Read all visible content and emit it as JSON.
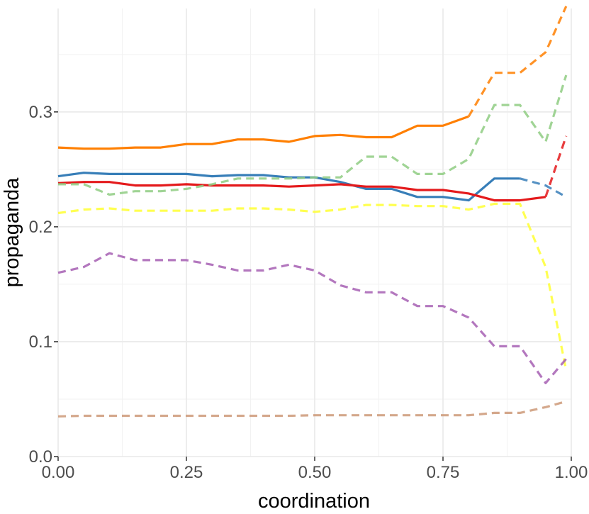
{
  "chart_data": {
    "type": "line",
    "title": "",
    "xlabel": "coordination",
    "ylabel": "propaganda",
    "xlim": [
      0,
      1
    ],
    "ylim": [
      0,
      0.39
    ],
    "grid": true,
    "legend": "none",
    "x_ticks": [
      0,
      0.25,
      0.5,
      0.75,
      1.0
    ],
    "x_tick_labels": [
      "0.00",
      "0.25",
      "0.50",
      "0.75",
      "1.00"
    ],
    "y_ticks": [
      0,
      0.1,
      0.2,
      0.3
    ],
    "y_tick_labels": [
      "0.0",
      "0.1",
      "0.2",
      "0.3"
    ],
    "x": [
      0,
      0.05,
      0.1,
      0.15,
      0.2,
      0.25,
      0.3,
      0.35,
      0.4,
      0.45,
      0.5,
      0.55,
      0.6,
      0.65,
      0.7,
      0.75,
      0.8,
      0.85,
      0.9,
      0.95,
      0.99
    ],
    "series": [
      {
        "color": "#ff7f00",
        "dash_start_index": 16,
        "values": [
          0.269,
          0.268,
          0.268,
          0.269,
          0.269,
          0.272,
          0.272,
          0.276,
          0.276,
          0.274,
          0.279,
          0.28,
          0.278,
          0.278,
          0.288,
          0.288,
          0.296,
          0.334,
          0.334,
          0.352,
          0.392
        ]
      },
      {
        "color": "#377eb8",
        "dash_start_index": 18,
        "values": [
          0.244,
          0.247,
          0.246,
          0.246,
          0.246,
          0.246,
          0.244,
          0.245,
          0.245,
          0.243,
          0.243,
          0.239,
          0.233,
          0.233,
          0.226,
          0.226,
          0.223,
          0.242,
          0.242,
          0.236,
          0.226
        ]
      },
      {
        "color": "#e41a1c",
        "dash_start_index": 19,
        "values": [
          0.238,
          0.239,
          0.239,
          0.236,
          0.236,
          0.237,
          0.236,
          0.236,
          0.236,
          0.235,
          0.236,
          0.237,
          0.235,
          0.235,
          0.232,
          0.232,
          0.229,
          0.223,
          0.223,
          0.226,
          0.279
        ]
      },
      {
        "color": "#8fcc82",
        "dash_start_index": 0,
        "values": [
          0.237,
          0.237,
          0.228,
          0.231,
          0.231,
          0.233,
          0.237,
          0.242,
          0.242,
          0.242,
          0.243,
          0.243,
          0.261,
          0.261,
          0.246,
          0.246,
          0.259,
          0.306,
          0.306,
          0.274,
          0.332
        ]
      },
      {
        "color": "#ffff33",
        "dash_start_index": 0,
        "values": [
          0.212,
          0.215,
          0.216,
          0.214,
          0.214,
          0.214,
          0.214,
          0.216,
          0.216,
          0.215,
          0.213,
          0.215,
          0.219,
          0.219,
          0.218,
          0.218,
          0.215,
          0.22,
          0.22,
          0.165,
          0.075
        ]
      },
      {
        "color": "#a65fb3",
        "dash_start_index": 0,
        "values": [
          0.16,
          0.165,
          0.177,
          0.171,
          0.171,
          0.171,
          0.167,
          0.162,
          0.162,
          0.167,
          0.162,
          0.149,
          0.143,
          0.143,
          0.131,
          0.131,
          0.121,
          0.096,
          0.096,
          0.064,
          0.085
        ]
      },
      {
        "color": "#cc9978",
        "dash_start_index": 0,
        "values": [
          0.035,
          0.0355,
          0.0355,
          0.0355,
          0.0355,
          0.0355,
          0.0355,
          0.0355,
          0.0355,
          0.0355,
          0.036,
          0.036,
          0.036,
          0.036,
          0.036,
          0.036,
          0.036,
          0.038,
          0.038,
          0.043,
          0.048
        ]
      }
    ]
  }
}
